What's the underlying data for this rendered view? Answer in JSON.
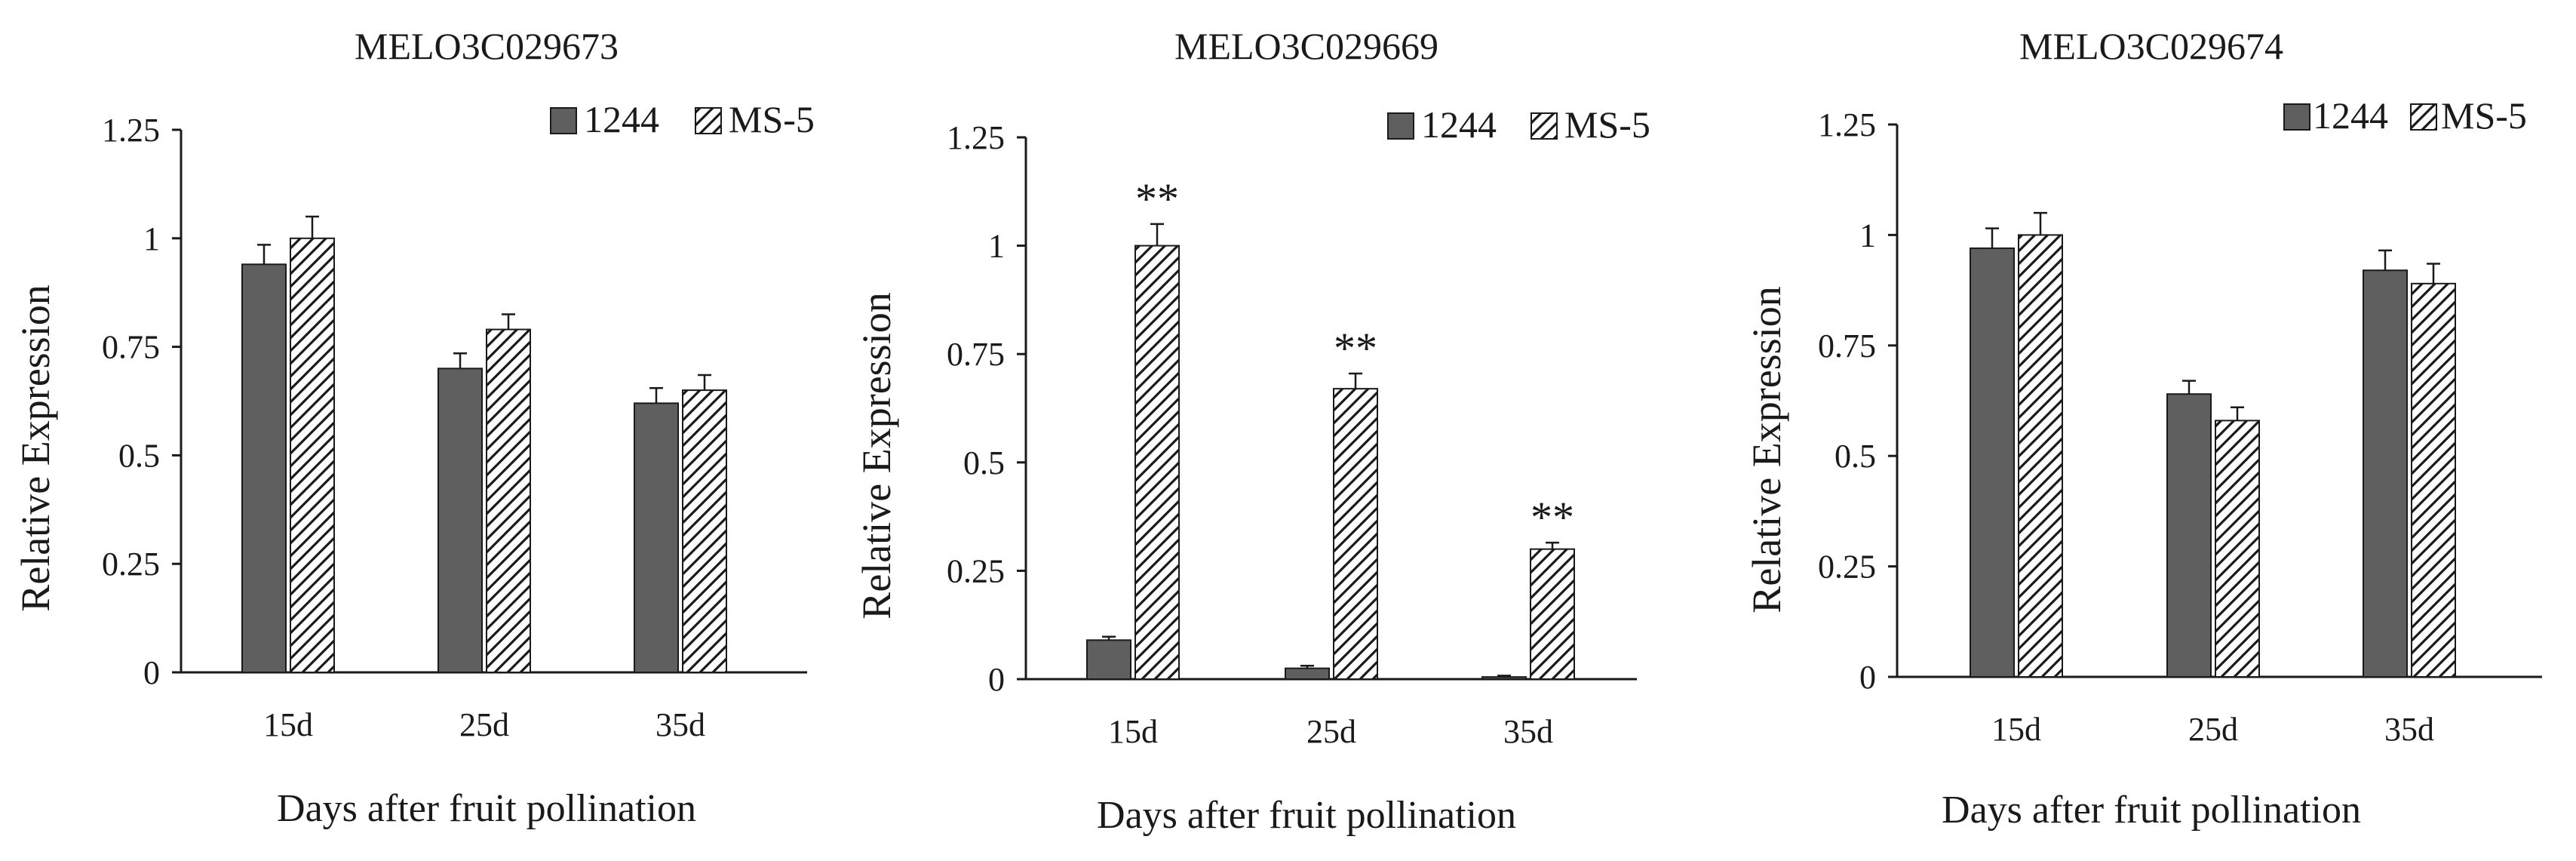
{
  "chart_data": [
    {
      "type": "bar",
      "title": "MELO3C029673",
      "xlabel": "Days after fruit pollination",
      "ylabel": "Relative Expression",
      "ylim": [
        0,
        1.25
      ],
      "yticks": [
        "0",
        "0.25",
        "0.5",
        "0.75",
        "1",
        "1.25"
      ],
      "categories": [
        "15d",
        "25d",
        "35d"
      ],
      "legend_position": "top-right",
      "series": [
        {
          "name": "1244",
          "pattern": "solid-gray",
          "values": [
            0.94,
            0.7,
            0.62
          ],
          "errors": [
            0.045,
            0.035,
            0.035
          ],
          "annotations": [
            "",
            "",
            ""
          ]
        },
        {
          "name": "MS-5",
          "pattern": "diagonal-hatch",
          "values": [
            1.0,
            0.79,
            0.65
          ],
          "errors": [
            0.05,
            0.035,
            0.035
          ],
          "annotations": [
            "",
            "",
            ""
          ]
        }
      ]
    },
    {
      "type": "bar",
      "title": "MELO3C029669",
      "xlabel": "Days after fruit pollination",
      "ylabel": "Relative Expression",
      "ylim": [
        0,
        1.25
      ],
      "yticks": [
        "0",
        "0.25",
        "0.5",
        "0.75",
        "1",
        "1.25"
      ],
      "categories": [
        "15d",
        "25d",
        "35d"
      ],
      "legend_position": "top-right",
      "series": [
        {
          "name": "1244",
          "pattern": "solid-gray",
          "values": [
            0.09,
            0.025,
            0.005
          ],
          "errors": [
            0.008,
            0.006,
            0.003
          ],
          "annotations": [
            "",
            "",
            ""
          ]
        },
        {
          "name": "MS-5",
          "pattern": "diagonal-hatch",
          "values": [
            1.0,
            0.67,
            0.3
          ],
          "errors": [
            0.05,
            0.035,
            0.015
          ],
          "annotations": [
            "**",
            "**",
            "**"
          ]
        }
      ]
    },
    {
      "type": "bar",
      "title": "MELO3C029674",
      "xlabel": "Days after fruit pollination",
      "ylabel": "Relative Expression",
      "ylim": [
        0,
        1.25
      ],
      "yticks": [
        "0",
        "0.25",
        "0.5",
        "0.75",
        "1",
        "1.25"
      ],
      "categories": [
        "15d",
        "25d",
        "35d"
      ],
      "legend_position": "top-right",
      "series": [
        {
          "name": "1244",
          "pattern": "solid-gray",
          "values": [
            0.97,
            0.64,
            0.92
          ],
          "errors": [
            0.045,
            0.03,
            0.045
          ],
          "annotations": [
            "",
            "",
            ""
          ]
        },
        {
          "name": "MS-5",
          "pattern": "diagonal-hatch",
          "values": [
            1.0,
            0.58,
            0.89
          ],
          "errors": [
            0.05,
            0.03,
            0.045
          ],
          "annotations": [
            "",
            "",
            ""
          ]
        }
      ]
    }
  ],
  "colors": {
    "solid_bar": "#5f5f5f",
    "hatch_stroke": "#1a1a1a",
    "axis": "#1a1a1a"
  }
}
